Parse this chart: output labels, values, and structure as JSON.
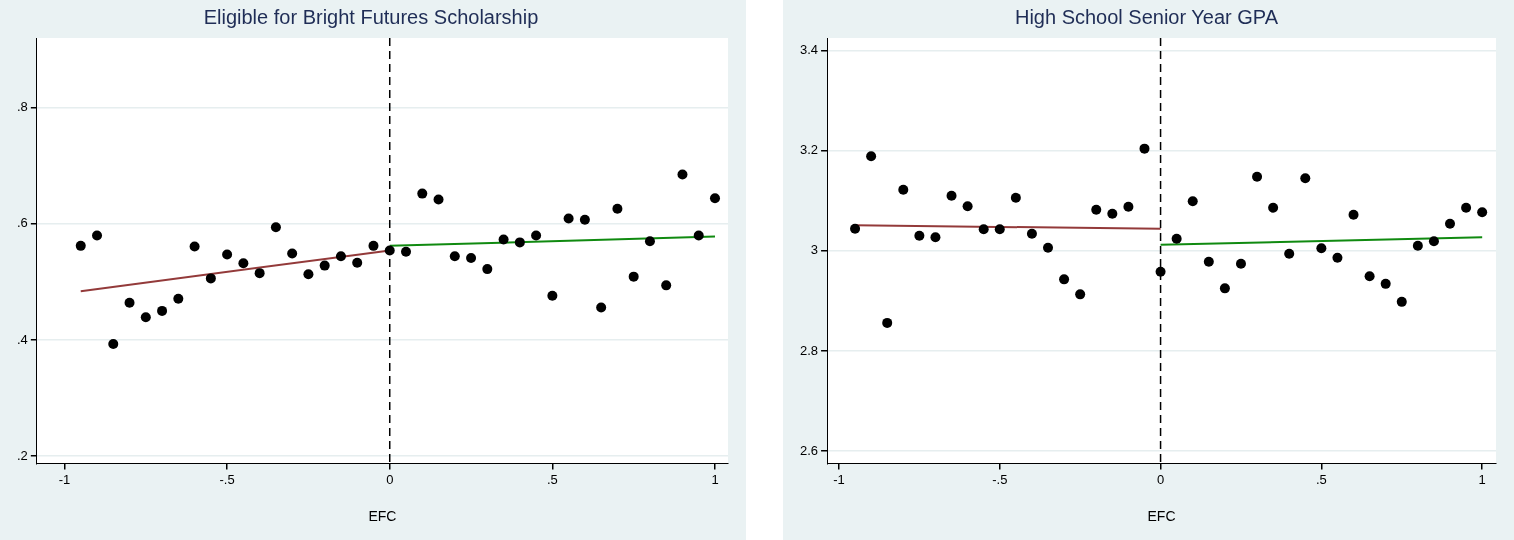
{
  "chart_data": [
    {
      "type": "scatter",
      "title": "Eligible for Bright Futures Scholarship",
      "xlabel": "EFC",
      "marker": "circle",
      "grid": "y",
      "xlim": [
        -1.085,
        1.04
      ],
      "xticks": [
        {
          "value": -1,
          "label": "-1"
        },
        {
          "value": -0.5,
          "label": "-.5"
        },
        {
          "value": 0,
          "label": "0"
        },
        {
          "value": 0.5,
          "label": ".5"
        },
        1
      ],
      "ylim": [
        0.187,
        0.92
      ],
      "yticks": [
        {
          "value": 0.2,
          "label": ".2"
        },
        {
          "value": 0.4,
          "label": ".4"
        },
        {
          "value": 0.6,
          "label": ".6"
        },
        {
          "value": 0.8,
          "label": ".8"
        }
      ],
      "x": [
        -0.95,
        -0.9,
        -0.85,
        -0.8,
        -0.75,
        -0.7,
        -0.65,
        -0.6,
        -0.55,
        -0.5,
        -0.45,
        -0.4,
        -0.35,
        -0.3,
        -0.25,
        -0.2,
        -0.15,
        -0.1,
        -0.05,
        0,
        0.05,
        0.1,
        0.15,
        0.2,
        0.25,
        0.3,
        0.35,
        0.4,
        0.45,
        0.5,
        0.55,
        0.6,
        0.65,
        0.7,
        0.75,
        0.8,
        0.85,
        0.9,
        0.95,
        1
      ],
      "series": [
        {
          "type": "scatter",
          "color": "#000000",
          "values": [
            0.562,
            0.58,
            0.393,
            0.464,
            0.439,
            0.45,
            0.471,
            0.561,
            0.506,
            0.547,
            0.532,
            0.515,
            0.594,
            0.549,
            0.513,
            0.528,
            0.544,
            0.533,
            0.562,
            0.554,
            0.552,
            0.652,
            0.642,
            0.544,
            0.541,
            0.522,
            0.573,
            0.568,
            0.58,
            0.476,
            0.609,
            0.607,
            0.456,
            0.626,
            0.509,
            0.57,
            0.494,
            0.685,
            0.58,
            0.644
          ]
        },
        {
          "type": "line",
          "marker": "none",
          "color": "#933a3a",
          "x": [
            -0.95,
            0
          ],
          "values": [
            0.484,
            0.554
          ]
        },
        {
          "type": "line",
          "marker": "none",
          "color": "#108a10",
          "x": [
            0,
            1
          ],
          "values": [
            0.562,
            0.578
          ]
        }
      ],
      "ref_lines": [
        {
          "axis": "x",
          "value": 0,
          "color": "#000000",
          "line_style": "dashed"
        }
      ]
    },
    {
      "type": "scatter",
      "title": "High School Senior Year GPA",
      "xlabel": "EFC",
      "marker": "circle",
      "grid": "y",
      "xlim": [
        -1.037,
        1.043
      ],
      "xticks": [
        {
          "value": -1,
          "label": "-1"
        },
        {
          "value": -0.5,
          "label": "-.5"
        },
        {
          "value": 0,
          "label": "0"
        },
        {
          "value": 0.5,
          "label": ".5"
        },
        1
      ],
      "ylim": [
        2.575,
        3.425
      ],
      "yticks": [
        2.6,
        2.8,
        3,
        3.2,
        3.4
      ],
      "x": [
        -0.95,
        -0.9,
        -0.85,
        -0.8,
        -0.75,
        -0.7,
        -0.65,
        -0.6,
        -0.55,
        -0.5,
        -0.45,
        -0.4,
        -0.35,
        -0.3,
        -0.25,
        -0.2,
        -0.15,
        -0.1,
        -0.05,
        0,
        0.05,
        0.1,
        0.15,
        0.2,
        0.25,
        0.3,
        0.35,
        0.4,
        0.45,
        0.5,
        0.55,
        0.6,
        0.65,
        0.7,
        0.75,
        0.8,
        0.85,
        0.9,
        0.95,
        1
      ],
      "series": [
        {
          "type": "scatter",
          "color": "#000000",
          "values": [
            3.044,
            3.189,
            2.856,
            3.122,
            3.03,
            3.027,
            3.11,
            3.089,
            3.043,
            3.043,
            3.106,
            3.034,
            3.006,
            2.943,
            2.913,
            3.082,
            3.074,
            3.088,
            3.204,
            2.958,
            3.024,
            3.099,
            2.978,
            2.925,
            2.974,
            3.148,
            3.086,
            2.994,
            3.145,
            3.005,
            2.986,
            3.072,
            2.949,
            2.934,
            2.898,
            3.01,
            3.019,
            3.054,
            3.086,
            3.077
          ]
        },
        {
          "type": "line",
          "marker": "none",
          "color": "#933a3a",
          "x": [
            -0.95,
            0
          ],
          "values": [
            3.051,
            3.044
          ]
        },
        {
          "type": "line",
          "marker": "none",
          "color": "#108a10",
          "x": [
            0,
            1
          ],
          "values": [
            3.012,
            3.027
          ]
        }
      ],
      "ref_lines": [
        {
          "axis": "x",
          "value": 0,
          "color": "#000000",
          "line_style": "dashed"
        }
      ]
    }
  ]
}
